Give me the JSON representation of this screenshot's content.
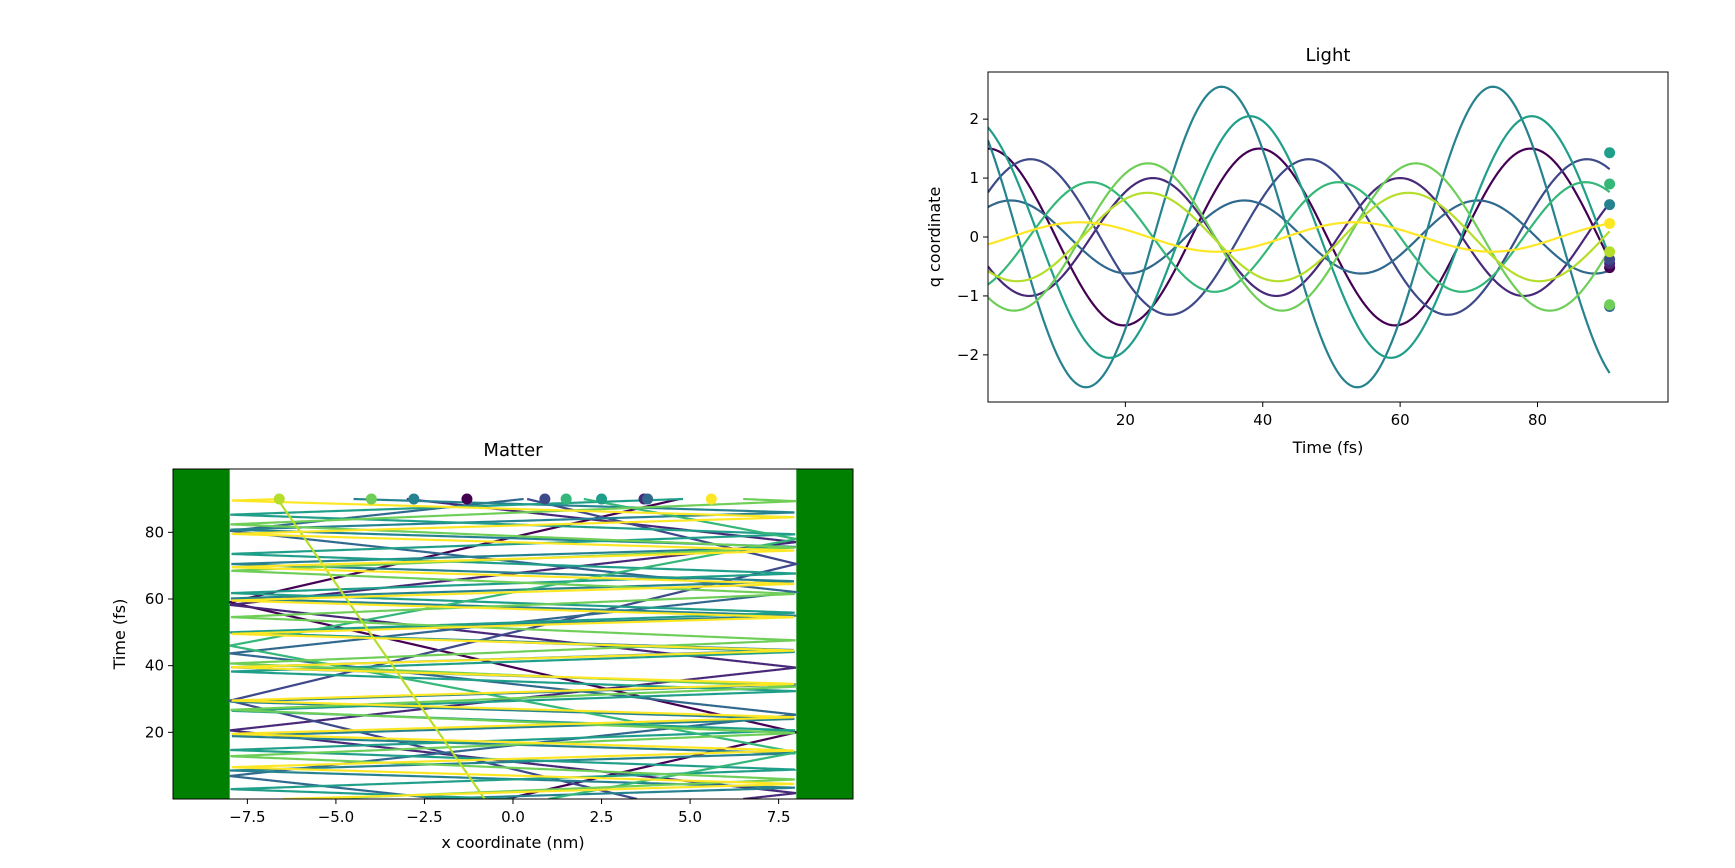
{
  "chart_data": [
    {
      "type": "line",
      "title": "Light",
      "xlabel": "Time (fs)",
      "ylabel": "q coordinate",
      "xlim": [
        0,
        99
      ],
      "ylim": [
        -2.8,
        2.8
      ],
      "xticks": [
        20,
        40,
        60,
        80
      ],
      "yticks": [
        -2,
        -1,
        0,
        1,
        2
      ],
      "grid": false,
      "legend": "none",
      "series": [
        {
          "color": "#440154",
          "amplitude": 1.5,
          "period": 39.5,
          "phase_deg": 90,
          "end_value": -0.52
        },
        {
          "color": "#482878",
          "amplitude": 1.0,
          "period": 36,
          "phase_deg": 210,
          "end_value": -0.45
        },
        {
          "color": "#3e4989",
          "amplitude": 1.32,
          "period": 40.5,
          "phase_deg": 35,
          "end_value": -0.38
        },
        {
          "color": "#31688e",
          "amplitude": 0.62,
          "period": 34,
          "phase_deg": 55,
          "end_value": -1.18
        },
        {
          "color": "#26828e",
          "amplitude": 2.55,
          "period": 39.5,
          "phase_deg": 140,
          "end_value": 0.55
        },
        {
          "color": "#1f9e89",
          "amplitude": 2.05,
          "period": 41,
          "phase_deg": 115,
          "end_value": 1.43
        },
        {
          "color": "#35b779",
          "amplitude": 0.93,
          "period": 36,
          "phase_deg": 300,
          "end_value": 0.9
        },
        {
          "color": "#6ece58",
          "amplitude": 1.25,
          "period": 39,
          "phase_deg": 235,
          "end_value": -1.15
        },
        {
          "color": "#b5de2b",
          "amplitude": 0.75,
          "period": 38,
          "phase_deg": 230,
          "end_value": -0.25
        },
        {
          "color": "#fde725",
          "amplitude": 0.25,
          "period": 40,
          "phase_deg": 330,
          "end_value": 0.23
        }
      ]
    },
    {
      "type": "line",
      "title": "Matter",
      "xlabel": "x coordinate (nm)",
      "ylabel": "Time (fs)",
      "xlim": [
        -9.6,
        9.6
      ],
      "ylim": [
        0,
        99
      ],
      "xticks": [
        -7.5,
        -5.0,
        -2.5,
        0.0,
        2.5,
        5.0,
        7.5
      ],
      "xtick_labels": [
        "−7.5",
        "−5.0",
        "−2.5",
        "0.0",
        "2.5",
        "5.0",
        "7.5"
      ],
      "yticks": [
        20,
        40,
        60,
        80
      ],
      "grid": false,
      "legend": "none",
      "wall_color": "#008000",
      "walls": [
        [
          -9.6,
          -8.0
        ],
        [
          8.0,
          9.6
        ]
      ],
      "t_end": 90,
      "box_half_width": 8.0,
      "series": [
        {
          "color": "#440154",
          "x0": -0.2,
          "speed": 0.41,
          "end_x": -1.3
        },
        {
          "color": "#482878",
          "x0": 6.5,
          "speed": 0.85,
          "end_x": 3.7
        },
        {
          "color": "#3e4989",
          "x0": 3.5,
          "speed": -0.39,
          "end_x": 0.9
        },
        {
          "color": "#31688e",
          "x0": -2.0,
          "speed": -0.87,
          "end_x": 3.8
        },
        {
          "color": "#26828e",
          "x0": -2.5,
          "speed": 3.1,
          "end_x": -2.8
        },
        {
          "color": "#1f9e89",
          "x0": 0.0,
          "speed": -2.72,
          "end_x": 2.5
        },
        {
          "color": "#35b779",
          "x0": 1.0,
          "speed": 0.5,
          "end_x": 1.5
        },
        {
          "color": "#6ece58",
          "x0": -5.5,
          "speed": 2.3,
          "end_x": -4.0
        },
        {
          "color": "#b5de2b",
          "x0": -0.8,
          "speed": -0.065,
          "end_x": -6.6
        },
        {
          "color": "#fde725",
          "x0": -6.5,
          "speed": 3.2,
          "end_x": 5.6
        }
      ]
    }
  ]
}
